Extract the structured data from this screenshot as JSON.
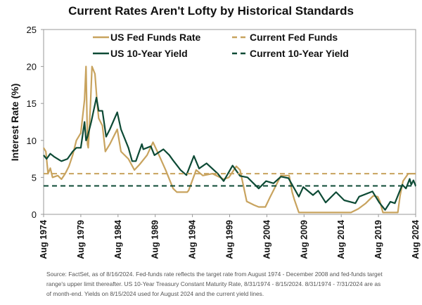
{
  "chart_data": {
    "type": "line",
    "title": "Current Rates Aren't Lofty by Historical Standards",
    "ylabel": "Interest Rate (%)",
    "xlabel": "",
    "ylim": [
      0,
      25
    ],
    "yticks": [
      "0",
      "5",
      "10",
      "15",
      "20",
      "25"
    ],
    "xticks": [
      "Aug 1974",
      "Aug 1979",
      "Aug 1984",
      "Aug 1989",
      "Aug 1994",
      "Aug 1999",
      "Aug 2004",
      "Aug 2009",
      "Aug 2014",
      "Aug 2019",
      "Aug 2024"
    ],
    "xlim": [
      1974.6,
      2024.6
    ],
    "grid": false,
    "legend_position": "top",
    "colors": {
      "fed": "#c8a35e",
      "yield": "#0d4a35"
    },
    "series": [
      {
        "name": "US Fed Funds Rate",
        "style": "solid",
        "color": "#c8a35e",
        "points": [
          [
            1974.6,
            9
          ],
          [
            1974.9,
            8.5
          ],
          [
            1975.2,
            5.5
          ],
          [
            1975.5,
            6.25
          ],
          [
            1975.8,
            5
          ],
          [
            1976.5,
            5.25
          ],
          [
            1977,
            4.75
          ],
          [
            1977.5,
            5.5
          ],
          [
            1978,
            6.5
          ],
          [
            1978.5,
            8
          ],
          [
            1979,
            10
          ],
          [
            1979.6,
            11
          ],
          [
            1980.1,
            15.5
          ],
          [
            1980.3,
            20
          ],
          [
            1980.5,
            9.5
          ],
          [
            1980.6,
            9
          ],
          [
            1980.9,
            15
          ],
          [
            1981.1,
            20
          ],
          [
            1981.5,
            19
          ],
          [
            1981.8,
            15
          ],
          [
            1982,
            13
          ],
          [
            1982.5,
            12
          ],
          [
            1982.9,
            8.5
          ],
          [
            1983.5,
            9.5
          ],
          [
            1984.5,
            11.5
          ],
          [
            1985,
            8.5
          ],
          [
            1986,
            7.5
          ],
          [
            1986.8,
            6
          ],
          [
            1987.5,
            6.75
          ],
          [
            1988.5,
            8
          ],
          [
            1989.3,
            9.75
          ],
          [
            1990,
            8.25
          ],
          [
            1991,
            6
          ],
          [
            1992,
            3.5
          ],
          [
            1992.5,
            3
          ],
          [
            1993.9,
            3
          ],
          [
            1994.1,
            3.25
          ],
          [
            1995.1,
            6
          ],
          [
            1996,
            5.25
          ],
          [
            1997.3,
            5.5
          ],
          [
            1998.8,
            4.75
          ],
          [
            1999.5,
            5
          ],
          [
            2000.5,
            6.5
          ],
          [
            2001,
            6
          ],
          [
            2001.9,
            1.75
          ],
          [
            2002.9,
            1.25
          ],
          [
            2003.5,
            1
          ],
          [
            2004.4,
            1
          ],
          [
            2005,
            2.25
          ],
          [
            2006.5,
            5.25
          ],
          [
            2007.6,
            5.25
          ],
          [
            2008,
            3
          ],
          [
            2008.3,
            2
          ],
          [
            2008.9,
            0.25
          ],
          [
            2015.9,
            0.25
          ],
          [
            2016.9,
            0.75
          ],
          [
            2017.9,
            1.5
          ],
          [
            2018.9,
            2.5
          ],
          [
            2019.5,
            2.4
          ],
          [
            2019.8,
            1.75
          ],
          [
            2020.2,
            0.25
          ],
          [
            2022.2,
            0.25
          ],
          [
            2022.5,
            2.5
          ],
          [
            2022.9,
            4.5
          ],
          [
            2023.6,
            5.5
          ],
          [
            2024.6,
            5.5
          ]
        ]
      },
      {
        "name": "US 10-Year Yield",
        "style": "solid",
        "color": "#0d4a35",
        "points": [
          [
            1974.6,
            8
          ],
          [
            1975,
            7.5
          ],
          [
            1975.5,
            8.2
          ],
          [
            1976,
            7.8
          ],
          [
            1976.8,
            7.3
          ],
          [
            1977,
            7.2
          ],
          [
            1977.8,
            7.5
          ],
          [
            1978.5,
            8.5
          ],
          [
            1979,
            9
          ],
          [
            1979.6,
            9
          ],
          [
            1980.1,
            12.5
          ],
          [
            1980.3,
            10
          ],
          [
            1980.5,
            10.5
          ],
          [
            1981,
            12.5
          ],
          [
            1981.7,
            15.8
          ],
          [
            1982,
            14
          ],
          [
            1982.5,
            14
          ],
          [
            1983,
            10.5
          ],
          [
            1983.5,
            11.5
          ],
          [
            1984.5,
            13.8
          ],
          [
            1985,
            11.5
          ],
          [
            1986,
            9
          ],
          [
            1986.5,
            7.2
          ],
          [
            1987,
            7.2
          ],
          [
            1987.8,
            9.5
          ],
          [
            1988,
            8.8
          ],
          [
            1989,
            9.2
          ],
          [
            1989.5,
            8
          ],
          [
            1990.7,
            8.8
          ],
          [
            1991.5,
            8
          ],
          [
            1992,
            7.3
          ],
          [
            1993,
            6
          ],
          [
            1993.8,
            5.3
          ],
          [
            1994.8,
            7.9
          ],
          [
            1995.5,
            6.2
          ],
          [
            1996.5,
            6.9
          ],
          [
            1998,
            5.5
          ],
          [
            1998.8,
            4.5
          ],
          [
            2000,
            6.6
          ],
          [
            2001,
            5.2
          ],
          [
            2002,
            5
          ],
          [
            2003.5,
            3.5
          ],
          [
            2004.5,
            4.5
          ],
          [
            2005.5,
            4.2
          ],
          [
            2006.5,
            5.1
          ],
          [
            2007.5,
            4.9
          ],
          [
            2008.9,
            2.4
          ],
          [
            2009.5,
            3.7
          ],
          [
            2010.8,
            2.6
          ],
          [
            2011.5,
            3.2
          ],
          [
            2012.5,
            1.6
          ],
          [
            2013.9,
            3
          ],
          [
            2015,
            1.9
          ],
          [
            2016.5,
            1.5
          ],
          [
            2017,
            2.4
          ],
          [
            2018.8,
            3.1
          ],
          [
            2019.7,
            1.6
          ],
          [
            2020.5,
            0.6
          ],
          [
            2021.2,
            1.7
          ],
          [
            2021.8,
            1.5
          ],
          [
            2022.4,
            3
          ],
          [
            2022.8,
            4
          ],
          [
            2023.3,
            3.5
          ],
          [
            2023.8,
            4.8
          ],
          [
            2024,
            4
          ],
          [
            2024.3,
            4.6
          ],
          [
            2024.6,
            3.85
          ]
        ]
      },
      {
        "name": "Current Fed Funds",
        "style": "dashed",
        "color": "#c8a35e",
        "value": 5.5
      },
      {
        "name": "Current 10-Year Yield",
        "style": "dashed",
        "color": "#0d4a35",
        "value": 3.85
      }
    ]
  },
  "footnote": {
    "line1": "Source: FactSet, as of 8/16/2024. Fed-funds rate reflects the target rate from August 1974 - December 2008 and fed-funds target",
    "line2": "range's upper limit thereafter. US 10-Year Treasury Constant Maturity Rate, 8/31/1974 - 8/15/2024. 8/31/1974 - 7/31/2024 are as",
    "line3": "of month-end. Yields on 8/15/2024 used for August 2024 and the current yield lines."
  }
}
